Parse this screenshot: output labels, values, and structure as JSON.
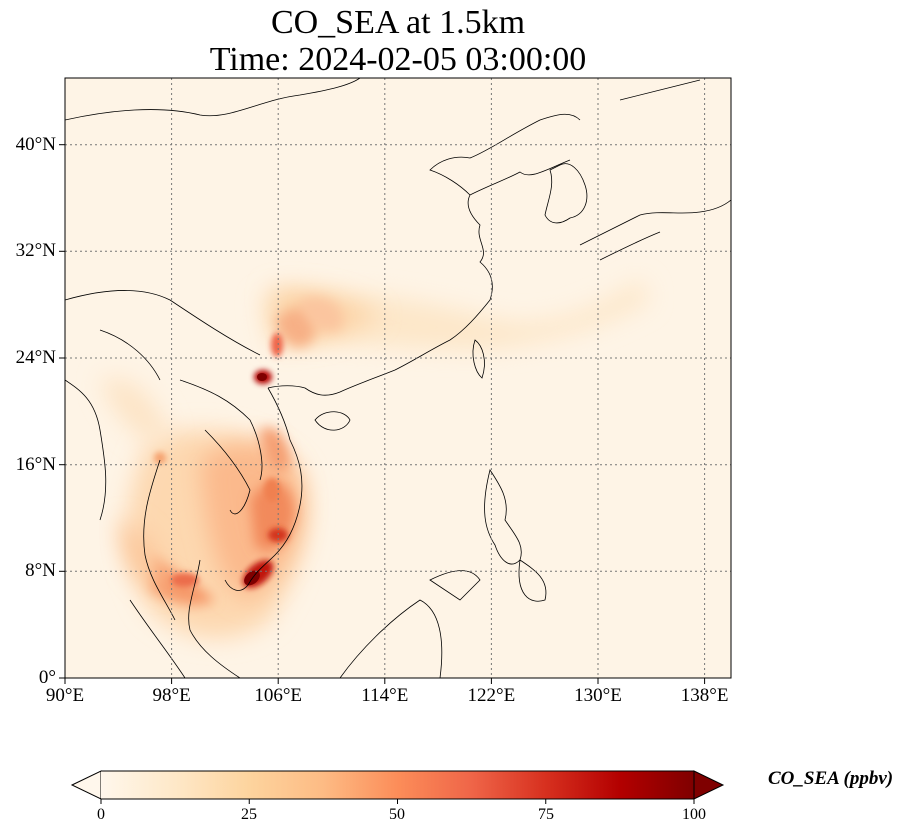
{
  "title": {
    "line1": "CO_SEA at 1.5km",
    "line2": "Time: 2024-02-05 03:00:00"
  },
  "map": {
    "projection": "PlateCarree",
    "lon_range": [
      90,
      140
    ],
    "lat_range": [
      0,
      45
    ],
    "gridlines": "dotted",
    "x_ticks": [
      {
        "value": 90,
        "label": "90°E"
      },
      {
        "value": 98,
        "label": "98°E"
      },
      {
        "value": 106,
        "label": "106°E"
      },
      {
        "value": 114,
        "label": "114°E"
      },
      {
        "value": 122,
        "label": "122°E"
      },
      {
        "value": 130,
        "label": "130°E"
      },
      {
        "value": 138,
        "label": "138°E"
      }
    ],
    "y_ticks": [
      {
        "value": 0,
        "label": "0°"
      },
      {
        "value": 8,
        "label": "8°N"
      },
      {
        "value": 16,
        "label": "16°N"
      },
      {
        "value": 24,
        "label": "24°N"
      },
      {
        "value": 32,
        "label": "32°N"
      },
      {
        "value": 40,
        "label": "40°N"
      }
    ]
  },
  "colorbar": {
    "label": "CO_SEA (ppbv)",
    "colormap": "OrRd",
    "range": [
      0,
      100
    ],
    "extend": "both",
    "ticks": [
      {
        "value": 0,
        "label": "0"
      },
      {
        "value": 25,
        "label": "25"
      },
      {
        "value": 50,
        "label": "50"
      },
      {
        "value": 75,
        "label": "75"
      },
      {
        "value": 100,
        "label": "100"
      }
    ],
    "colors": [
      "#fff7ec",
      "#fee8c8",
      "#fdd49e",
      "#fdbb84",
      "#fc8d59",
      "#ef6548",
      "#d7301f",
      "#b30000",
      "#7f0000"
    ]
  },
  "field_hotspots": [
    {
      "lon": 104.7,
      "lat": 8.1,
      "value": 100
    },
    {
      "lon": 105.8,
      "lat": 10.6,
      "value": 80
    },
    {
      "lon": 105.8,
      "lat": 21.3,
      "value": 100
    },
    {
      "lon": 100.5,
      "lat": 6.8,
      "value": 55
    },
    {
      "lon": 103.5,
      "lat": 11.5,
      "value": 50
    },
    {
      "lon": 105.5,
      "lat": 16.0,
      "value": 45
    },
    {
      "lon": 107.5,
      "lat": 27.5,
      "value": 35
    },
    {
      "lon": 110.0,
      "lat": 29.0,
      "value": 25
    },
    {
      "lon": 114.0,
      "lat": 26.5,
      "value": 15
    }
  ]
}
